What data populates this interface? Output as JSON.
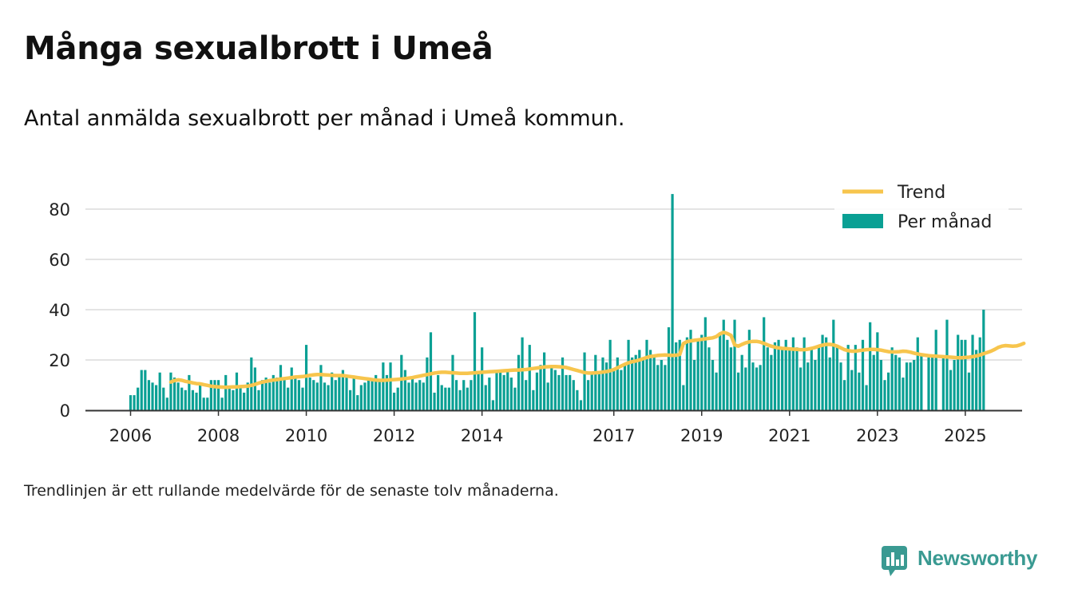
{
  "title": "Många sexualbrott i Umeå",
  "subtitle": "Antal anmälda sexualbrott per månad i Umeå kommun.",
  "note": "Trendlinjen är ett rullande medelvärde för de senaste tolv månaderna.",
  "brand": {
    "name": "Newsworthy",
    "icon": "newsworthy-logo-icon",
    "color": "#3a9a92"
  },
  "chart_data": {
    "type": "bar",
    "title": "",
    "xlabel": "",
    "ylabel": "",
    "ylim": [
      0,
      90
    ],
    "yticks": [
      0,
      20,
      40,
      60,
      80
    ],
    "xticks": [
      {
        "label": "2006",
        "value": "2006-01"
      },
      {
        "label": "2008",
        "value": "2008-01"
      },
      {
        "label": "2010",
        "value": "2010-01"
      },
      {
        "label": "2012",
        "value": "2012-01"
      },
      {
        "label": "2014",
        "value": "2014-01"
      },
      {
        "label": "2017",
        "value": "2017-01"
      },
      {
        "label": "2019",
        "value": "2019-01"
      },
      {
        "label": "2021",
        "value": "2021-01"
      },
      {
        "label": "2023",
        "value": "2023-01"
      },
      {
        "label": "2025",
        "value": "2025-01"
      }
    ],
    "grid": true,
    "legend": "top-right",
    "x_start": "2006-01",
    "x_end": "2025-04",
    "series": [
      {
        "name": "Per månad",
        "type": "bar",
        "color": "#0aa094",
        "values": [
          6,
          6,
          9,
          16,
          16,
          12,
          11,
          10,
          15,
          9,
          5,
          15,
          13,
          11,
          9,
          8,
          14,
          8,
          7,
          10,
          5,
          5,
          12,
          12,
          12,
          5,
          14,
          9,
          8,
          15,
          9,
          7,
          11,
          21,
          17,
          8,
          12,
          13,
          11,
          14,
          13,
          18,
          13,
          9,
          17,
          13,
          12,
          9,
          26,
          13,
          12,
          11,
          18,
          11,
          10,
          15,
          12,
          14,
          16,
          13,
          8,
          13,
          6,
          10,
          11,
          13,
          12,
          14,
          12,
          19,
          14,
          19,
          7,
          9,
          22,
          16,
          11,
          13,
          11,
          12,
          11,
          21,
          31,
          7,
          14,
          10,
          9,
          9,
          22,
          12,
          8,
          12,
          9,
          12,
          39,
          15,
          25,
          10,
          13,
          4,
          15,
          15,
          14,
          16,
          13,
          9,
          22,
          29,
          12,
          26,
          8,
          15,
          18,
          23,
          11,
          17,
          16,
          14,
          21,
          14,
          14,
          12,
          8,
          4,
          23,
          12,
          15,
          22,
          15,
          21,
          19,
          28,
          16,
          21,
          16,
          18,
          28,
          21,
          22,
          24,
          21,
          28,
          24,
          21,
          18,
          20,
          18,
          33,
          86,
          27,
          28,
          10,
          29,
          32,
          20,
          28,
          30,
          37,
          25,
          20,
          15,
          30,
          36,
          28,
          25,
          36,
          15,
          22,
          17,
          32,
          19,
          17,
          18,
          37,
          25,
          22,
          27,
          28,
          24,
          28,
          24,
          29,
          25,
          17,
          29,
          19,
          24,
          20,
          25,
          30,
          29,
          21,
          36,
          26,
          19,
          12,
          26,
          16,
          26,
          15,
          28,
          10,
          35,
          22,
          31,
          20,
          12,
          15,
          25,
          22,
          21,
          13,
          19,
          19,
          20,
          29,
          22,
          0,
          21,
          21,
          32,
          0,
          21,
          36,
          16,
          20,
          30,
          28,
          28,
          15,
          30,
          24,
          29,
          40
        ]
      },
      {
        "name": "Trend",
        "type": "line",
        "color": "#f7c54d",
        "start_index": 11,
        "values": [
          11.2,
          11.8,
          12.1,
          11.9,
          11.5,
          11.2,
          10.9,
          10.6,
          10.5,
          10.2,
          9.9,
          9.6,
          9.4,
          9.3,
          9.2,
          9.1,
          9.2,
          9.3,
          9.3,
          9.4,
          9.5,
          9.6,
          9.9,
          10.3,
          10.8,
          11.2,
          11.5,
          11.8,
          12.0,
          12.2,
          12.4,
          12.6,
          12.8,
          13.0,
          13.2,
          13.3,
          13.4,
          13.6,
          13.9,
          14.1,
          14.2,
          14.2,
          14.1,
          14.0,
          13.9,
          13.8,
          13.8,
          13.8,
          13.6,
          13.4,
          13.2,
          13.0,
          12.8,
          12.6,
          12.4,
          12.2,
          12.0,
          11.9,
          11.9,
          12.0,
          12.1,
          12.2,
          12.3,
          12.4,
          12.6,
          12.8,
          13.0,
          13.3,
          13.6,
          13.9,
          14.2,
          14.5,
          14.8,
          15.0,
          15.1,
          15.1,
          15.0,
          14.9,
          14.8,
          14.7,
          14.7,
          14.7,
          14.8,
          14.9,
          15.0,
          15.1,
          15.2,
          15.3,
          15.4,
          15.5,
          15.6,
          15.7,
          15.8,
          15.9,
          16.0,
          16.0,
          16.1,
          16.2,
          16.4,
          16.6,
          16.8,
          17.0,
          17.2,
          17.3,
          17.4,
          17.4,
          17.3,
          17.2,
          17.0,
          16.6,
          16.2,
          15.8,
          15.4,
          15.0,
          14.8,
          14.8,
          14.9,
          15.0,
          15.2,
          15.4,
          15.7,
          16.2,
          16.9,
          17.6,
          18.3,
          18.9,
          19.3,
          19.6,
          20.0,
          20.5,
          21.0,
          21.4,
          21.6,
          21.8,
          21.9,
          22.0,
          21.9,
          21.8,
          21.9,
          22.2,
          26.5,
          27.3,
          27.6,
          27.8,
          28.0,
          28.2,
          28.4,
          28.6,
          28.8,
          29.3,
          30.4,
          31.0,
          30.5,
          29.8,
          26.0,
          25.5,
          26.2,
          26.8,
          27.2,
          27.4,
          27.4,
          27.1,
          26.6,
          26.0,
          25.5,
          25.1,
          24.8,
          24.6,
          24.5,
          24.4,
          24.3,
          24.2,
          24.1,
          24.1,
          24.3,
          24.6,
          25.0,
          25.5,
          25.9,
          26.2,
          26.2,
          26.0,
          25.5,
          24.8,
          24.1,
          23.7,
          23.5,
          23.5,
          23.7,
          23.9,
          24.1,
          24.2,
          24.2,
          24.1,
          23.9,
          23.6,
          23.3,
          23.2,
          23.2,
          23.3,
          23.5,
          23.4,
          23.1,
          22.7,
          22.4,
          22.1,
          21.9,
          21.7,
          21.6,
          21.5,
          21.4,
          21.3,
          21.2,
          21.1,
          21.0,
          20.9,
          20.9,
          21.0,
          21.1,
          21.3,
          21.6,
          22.0,
          22.5,
          23.0,
          23.5,
          24.2,
          25.0,
          25.5,
          25.7,
          25.6,
          25.5,
          25.6,
          26.0,
          26.6
        ]
      }
    ]
  }
}
